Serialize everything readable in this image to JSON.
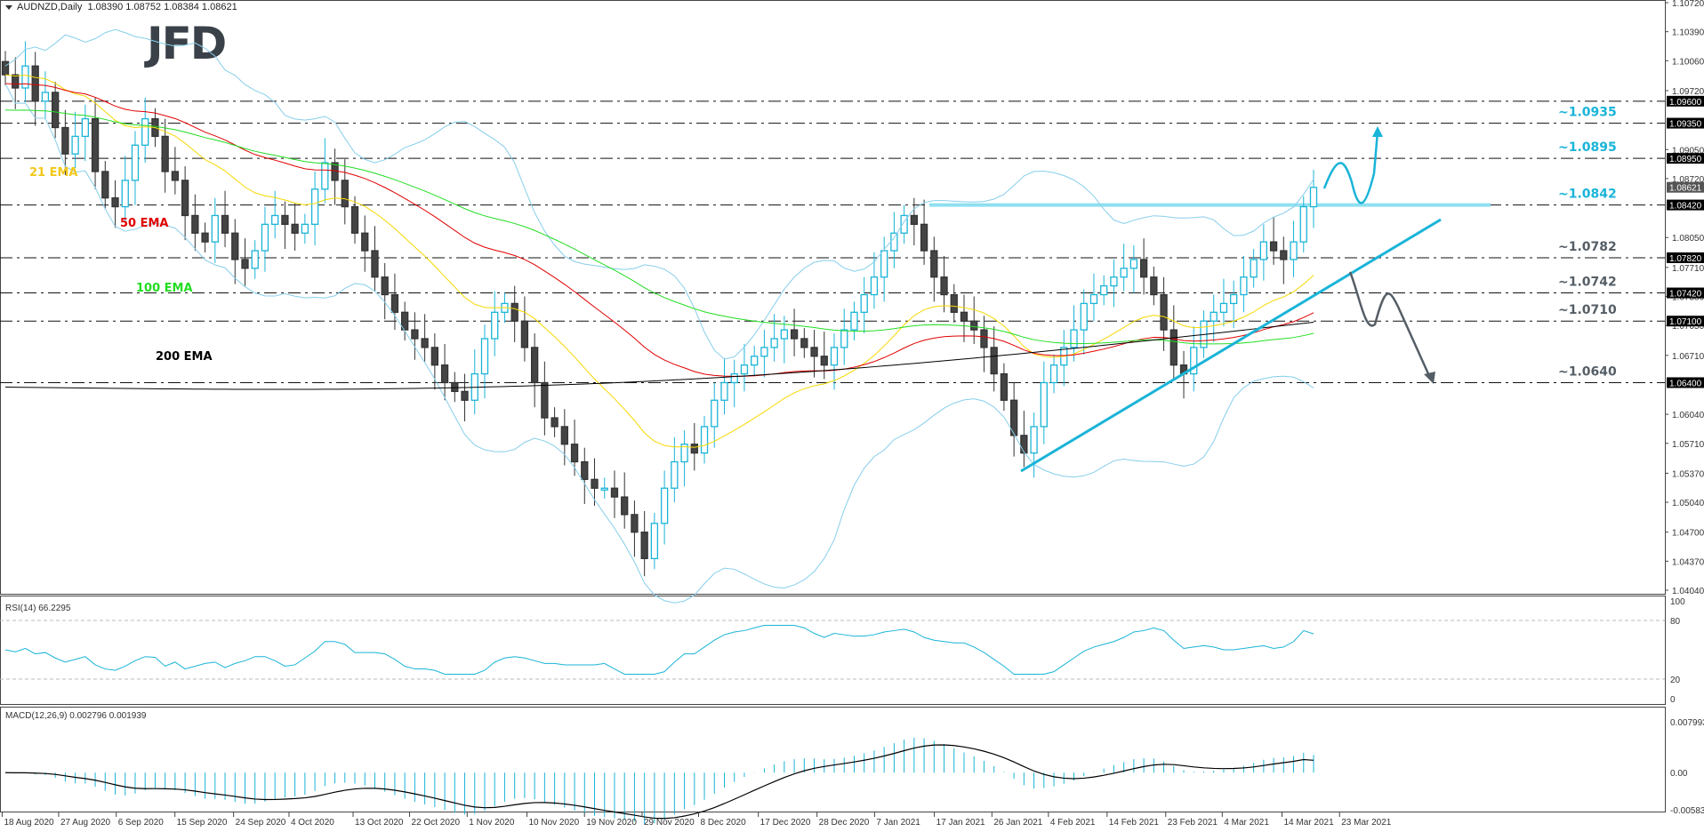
{
  "header": {
    "symbol": "AUDNZD,Daily",
    "ohlc": "1.08390 1.08752 1.08384 1.08621"
  },
  "logo": {
    "text": "JFD"
  },
  "chart_data": [
    {
      "type": "candlestick",
      "title": "AUDNZD, Daily",
      "ohlc_last": {
        "open": 1.0839,
        "high": 1.08752,
        "low": 1.08384,
        "close": 1.08621
      },
      "price_axis_ticks": [
        1.1072,
        1.1039,
        1.1006,
        1.0972,
        1.0905,
        1.0872,
        1.0805,
        1.0771,
        1.0738,
        1.0705,
        1.0671,
        1.0604,
        1.0571,
        1.0537,
        1.0504,
        1.047,
        1.0437,
        1.0404
      ],
      "price_axis_highlighted": [
        1.096,
        1.0935,
        1.0895,
        1.0842,
        1.0782,
        1.0742,
        1.071,
        1.064
      ],
      "current_price_label": 1.08621,
      "ylim": [
        1.0404,
        1.1072
      ],
      "x_tick_labels": [
        "18 Aug 2020",
        "27 Aug 2020",
        "6 Sep 2020",
        "15 Sep 2020",
        "24 Sep 2020",
        "4 Oct 2020",
        "13 Oct 2020",
        "22 Oct 2020",
        "1 Nov 2020",
        "10 Nov 2020",
        "19 Nov 2020",
        "29 Nov 2020",
        "8 Dec 2020",
        "17 Dec 2020",
        "28 Dec 2020",
        "7 Jan 2021",
        "17 Jan 2021",
        "26 Jan 2021",
        "4 Feb 2021",
        "14 Feb 2021",
        "23 Feb 2021",
        "4 Mar 2021",
        "14 Mar 2021",
        "23 Mar 2021"
      ],
      "horizontal_levels": [
        {
          "price": 1.096,
          "label": ""
        },
        {
          "price": 1.0935,
          "label": "~1.0935",
          "color": "#1ab4d8"
        },
        {
          "price": 1.0895,
          "label": "~1.0895",
          "color": "#1ab4d8"
        },
        {
          "price": 1.0842,
          "label": "~1.0842",
          "color": "#1ab4d8"
        },
        {
          "price": 1.0782,
          "label": "~1.0782",
          "color": "#555e66"
        },
        {
          "price": 1.0742,
          "label": "~1.0742",
          "color": "#555e66"
        },
        {
          "price": 1.071,
          "label": "~1.0710",
          "color": "#555e66"
        },
        {
          "price": 1.064,
          "label": "~1.0640",
          "color": "#555e66"
        }
      ],
      "indicators": [
        {
          "name": "21 EMA",
          "color": "#f5d800"
        },
        {
          "name": "50 EMA",
          "color": "#e00000"
        },
        {
          "name": "100 EMA",
          "color": "#22dd22"
        },
        {
          "name": "200 EMA",
          "color": "#000000"
        },
        {
          "name": "Bollinger Bands",
          "color": "#87ceeb"
        }
      ],
      "annotations": [
        "Upside projection arrow toward ~1.0935",
        "Downside projection arrow toward ~1.0640",
        "Uptrend line from early Feb 2021 low",
        "Resistance line at ~1.0842"
      ],
      "approx_closes": [
        1.099,
        1.0975,
        1.1,
        1.096,
        1.097,
        1.093,
        1.09,
        1.092,
        1.094,
        1.088,
        1.085,
        1.084,
        1.087,
        1.091,
        1.094,
        1.092,
        1.088,
        1.087,
        1.083,
        1.081,
        1.08,
        1.083,
        1.081,
        1.078,
        1.077,
        1.079,
        1.082,
        1.083,
        1.082,
        1.081,
        1.082,
        1.086,
        1.089,
        1.087,
        1.084,
        1.081,
        1.079,
        1.076,
        1.074,
        1.072,
        1.07,
        1.069,
        1.068,
        1.066,
        1.064,
        1.063,
        1.062,
        1.065,
        1.069,
        1.072,
        1.073,
        1.071,
        1.068,
        1.064,
        1.06,
        1.059,
        1.057,
        1.055,
        1.053,
        1.052,
        1.052,
        1.051,
        1.049,
        1.047,
        1.044,
        1.048,
        1.052,
        1.055,
        1.057,
        1.056,
        1.059,
        1.062,
        1.064,
        1.065,
        1.066,
        1.067,
        1.068,
        1.069,
        1.07,
        1.069,
        1.068,
        1.067,
        1.066,
        1.068,
        1.07,
        1.072,
        1.074,
        1.076,
        1.079,
        1.081,
        1.083,
        1.082,
        1.079,
        1.076,
        1.074,
        1.072,
        1.071,
        1.07,
        1.068,
        1.065,
        1.062,
        1.058,
        1.056,
        1.059,
        1.064,
        1.066,
        1.068,
        1.07,
        1.073,
        1.074,
        1.075,
        1.076,
        1.077,
        1.078,
        1.076,
        1.074,
        1.07,
        1.066,
        1.065,
        1.068,
        1.071,
        1.072,
        1.073,
        1.074,
        1.076,
        1.078,
        1.08,
        1.079,
        1.078,
        1.08,
        1.084,
        1.0862
      ]
    },
    {
      "type": "line",
      "title": "RSI(14) 66.2295",
      "value": 66.2295,
      "ylim": [
        0,
        100
      ],
      "y_tick_labels": [
        "100",
        "80",
        "20",
        "0"
      ],
      "levels": [
        80,
        20
      ],
      "color": "#1ab4d8"
    },
    {
      "type": "bar+line",
      "title": "MACD(12,26,9) 0.002796 0.001939",
      "macd": 0.002796,
      "signal": 0.001939,
      "ylim": [
        -0.005837,
        0.007993
      ],
      "y_tick_labels": [
        "0.007993",
        "0.00",
        "-0.005837"
      ],
      "histogram_color": "#1ab4d8",
      "signal_color": "#000000"
    }
  ]
}
